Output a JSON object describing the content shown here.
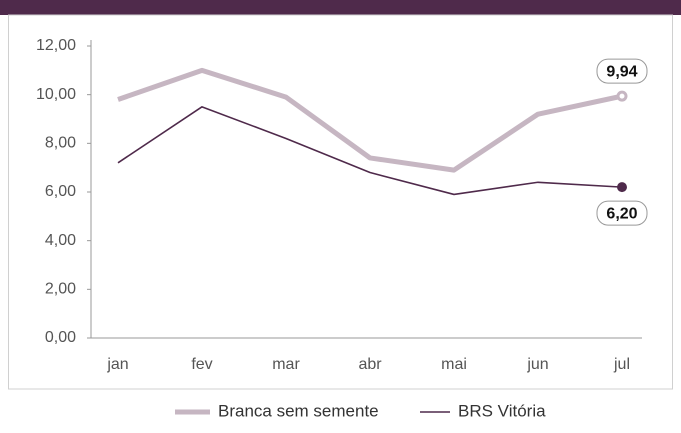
{
  "chart_data": {
    "type": "line",
    "categories": [
      "jan",
      "fev",
      "mar",
      "abr",
      "mai",
      "jun",
      "jul"
    ],
    "series": [
      {
        "name": "Branca sem semente",
        "color": "#c6b6c2",
        "values": [
          9.8,
          11.0,
          9.9,
          7.4,
          6.9,
          9.2,
          9.94
        ],
        "value_labels": [
          null,
          null,
          null,
          null,
          null,
          null,
          "9,94"
        ]
      },
      {
        "name": "BRS Vitória",
        "color": "#4f2a4b",
        "values": [
          7.2,
          9.5,
          8.2,
          6.8,
          5.9,
          6.4,
          6.2
        ],
        "value_labels": [
          null,
          null,
          null,
          null,
          null,
          null,
          "6,20"
        ]
      }
    ],
    "ylim": [
      0,
      12
    ],
    "yticks": [
      {
        "value": 0,
        "label": "0,00"
      },
      {
        "value": 2,
        "label": "2,00"
      },
      {
        "value": 4,
        "label": "4,00"
      },
      {
        "value": 6,
        "label": "6,00"
      },
      {
        "value": 8,
        "label": "8,00"
      },
      {
        "value": 10,
        "label": "10,00"
      },
      {
        "value": 12,
        "label": "12,00"
      }
    ],
    "legend": "bottom"
  }
}
